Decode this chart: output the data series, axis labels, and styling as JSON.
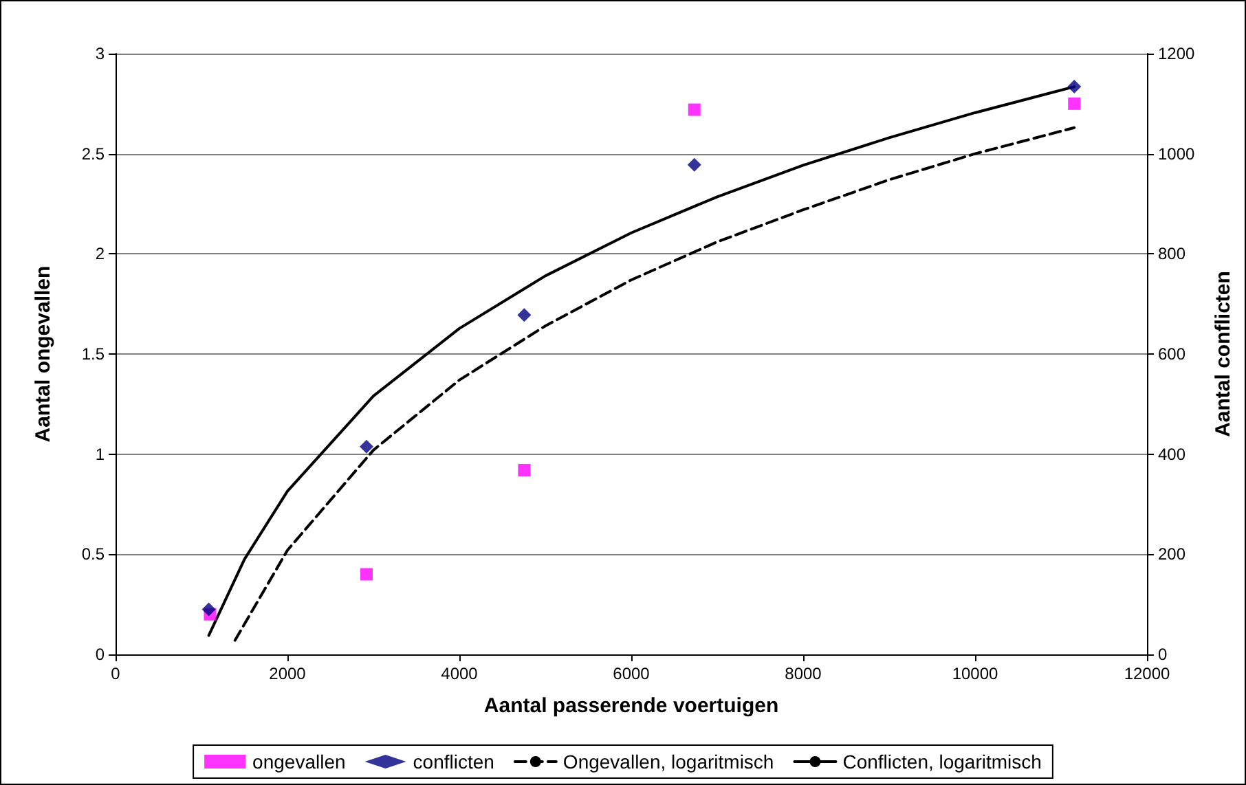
{
  "chart_data": {
    "type": "scatter",
    "xlabel": "Aantal passerende voertuigen",
    "ylabel": "Aantal ongevallen",
    "y2label": "Aantal conflicten",
    "xlim": [
      0,
      12000
    ],
    "xticks": [
      0,
      2000,
      4000,
      6000,
      8000,
      10000,
      12000
    ],
    "ylim": [
      0,
      3
    ],
    "yticks": [
      0,
      0.5,
      1,
      1.5,
      2,
      2.5,
      3
    ],
    "y2lim": [
      0,
      1200
    ],
    "y2ticks": [
      0,
      200,
      400,
      600,
      800,
      1000,
      1200
    ],
    "grid": "y",
    "legend": "bottom",
    "series": [
      {
        "name": "ongevallen",
        "type": "scatter",
        "marker": "square",
        "color": "#ff00ff",
        "x": [
          1100,
          2920,
          4755,
          6734,
          11154
        ],
        "values": [
          0.2,
          0.4,
          0.92,
          2.72,
          2.75
        ]
      },
      {
        "name": "conflicten",
        "type": "scatter",
        "marker": "diamond",
        "color": "#000080",
        "axis": "y2",
        "x": [
          1085,
          2920,
          4755,
          6734,
          11154
        ],
        "values": [
          90,
          415,
          678,
          978,
          1134
        ]
      },
      {
        "name": "Ongevallen, logaritmisch",
        "type": "line",
        "marker": "none",
        "line_style": "dashed",
        "color": "#000000",
        "x": [
          1390,
          2000,
          3000,
          4000,
          5000,
          6000,
          7000,
          8000,
          9000,
          10000,
          11154
        ],
        "values": [
          0.07,
          0.52,
          1.02,
          1.37,
          1.64,
          1.87,
          2.06,
          2.22,
          2.37,
          2.5,
          2.63
        ]
      },
      {
        "name": "Conflicten, logaritmisch",
        "type": "line",
        "marker": "none",
        "line_style": "solid",
        "color": "#000000",
        "axis": "y2",
        "x": [
          1085,
          1500,
          2000,
          3000,
          4000,
          5000,
          6000,
          7000,
          8000,
          9000,
          10000,
          11154
        ],
        "values": [
          38,
          190,
          326,
          516,
          651,
          756,
          842,
          914,
          977,
          1032,
          1082,
          1134
        ]
      }
    ]
  }
}
